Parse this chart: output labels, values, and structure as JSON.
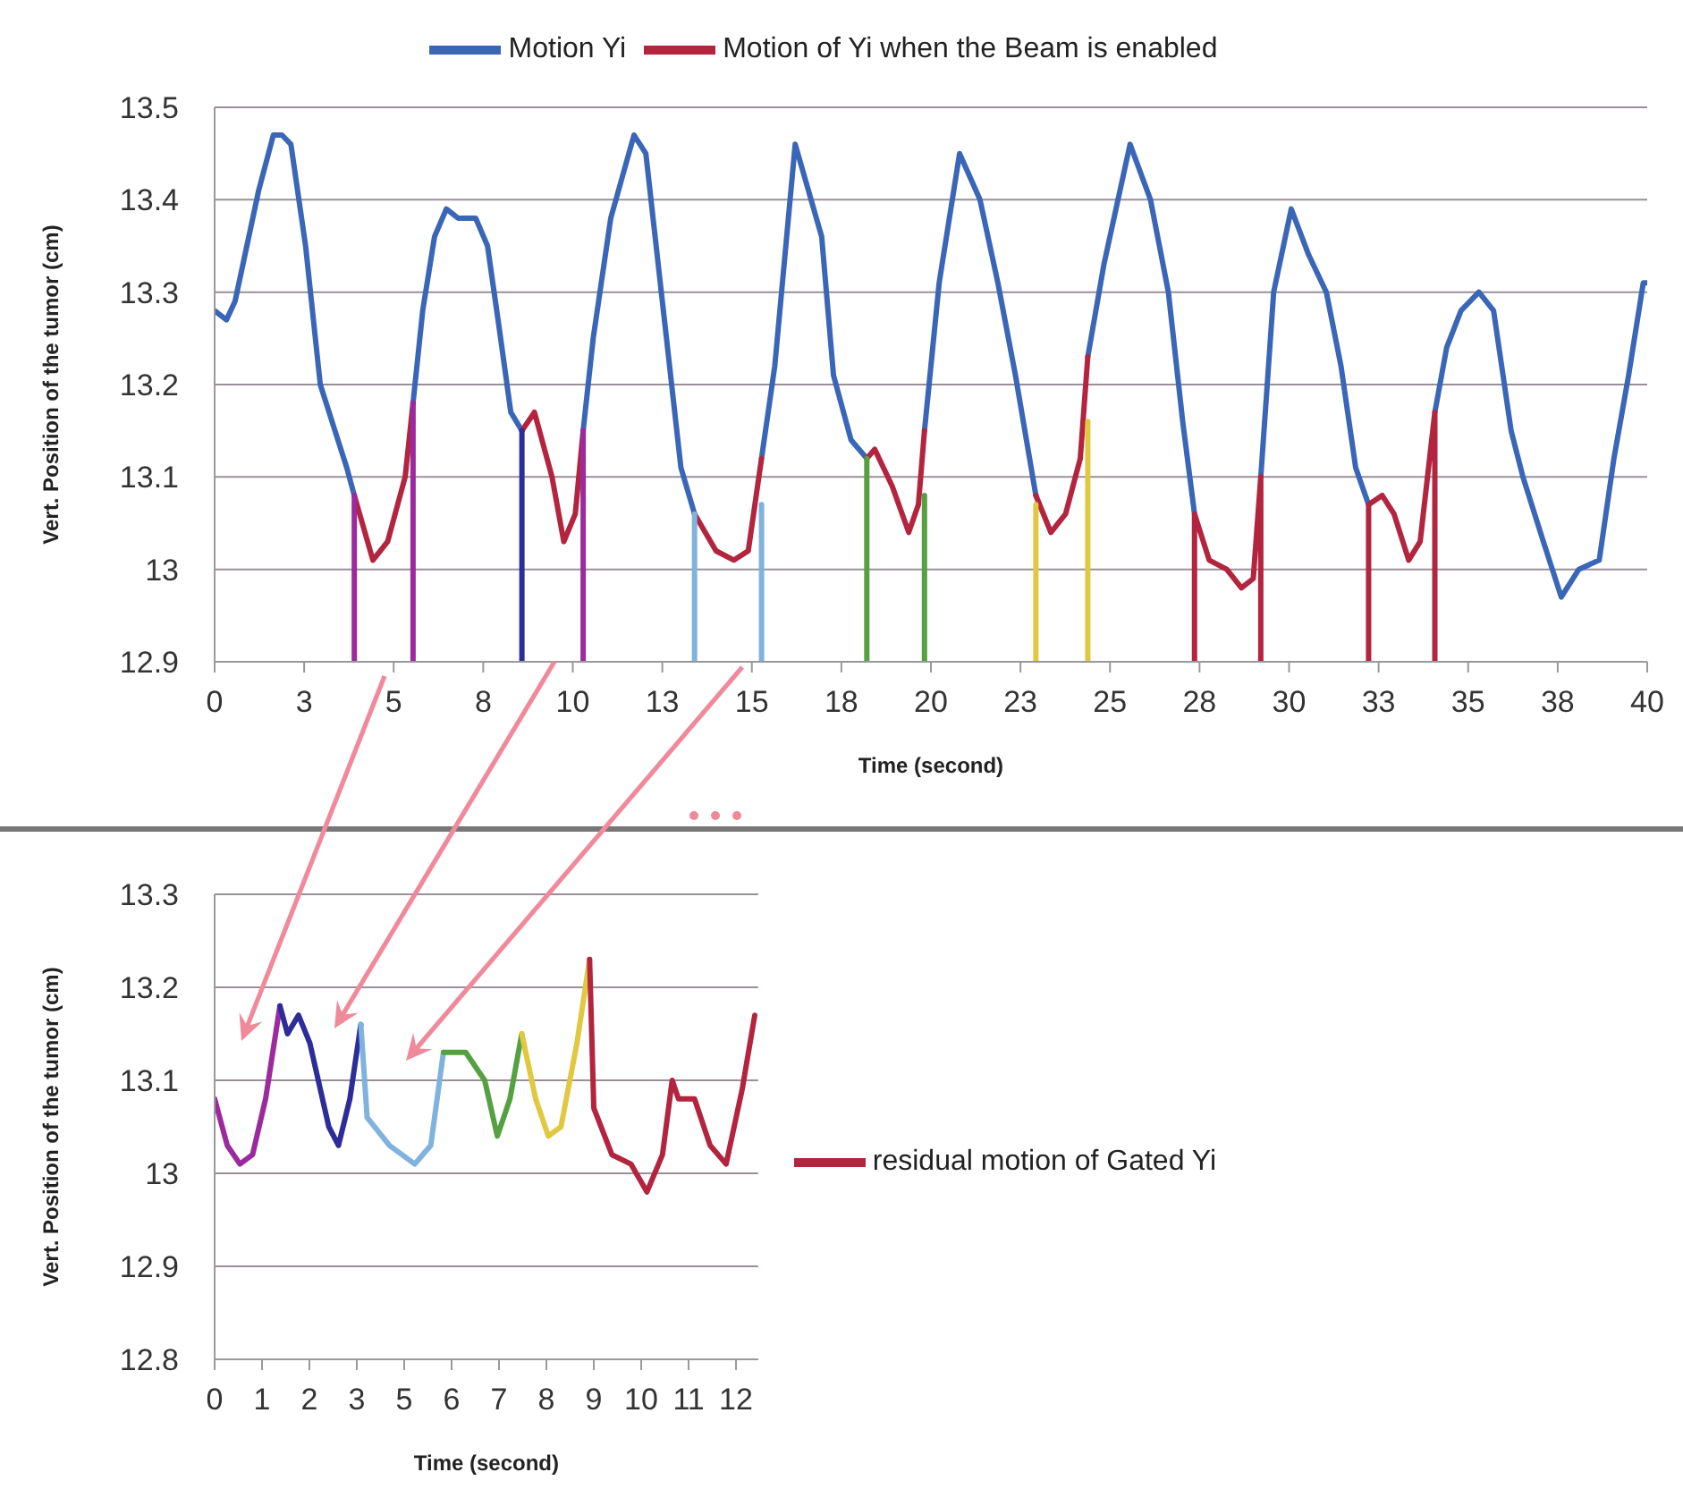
{
  "chart_data": [
    {
      "type": "line",
      "xlabel": "Time (second)",
      "ylabel": "Vert. Position of the tumor (cm)",
      "xlim": [
        0,
        40
      ],
      "ylim": [
        12.9,
        13.5
      ],
      "xticks": [
        0,
        {
          "value": 2.5,
          "label": "3"
        },
        5,
        {
          "value": 7.5,
          "label": "8"
        },
        10,
        {
          "value": 12.5,
          "label": "13"
        },
        15,
        {
          "value": 17.5,
          "label": "18"
        },
        20,
        {
          "value": 22.5,
          "label": "23"
        },
        25,
        {
          "value": 27.5,
          "label": "28"
        },
        30,
        {
          "value": 32.5,
          "label": "33"
        },
        35,
        {
          "value": 37.5,
          "label": "38"
        },
        40
      ],
      "yticks": [
        12.9,
        13,
        13.1,
        13.2,
        13.3,
        13.4,
        13.5
      ],
      "grid": "y",
      "legend": "top",
      "marker": "none",
      "line_style": "solid",
      "series": [
        {
          "name": "Motion Yi",
          "color": "#3a66b8",
          "x": [
            0,
            0.33,
            0.57,
            0.9,
            1.23,
            1.64,
            1.88,
            2.13,
            2.54,
            2.95,
            3.36,
            3.69,
            3.9,
            4.7,
            5.54,
            5.81,
            6.14,
            6.47,
            6.8,
            7.29,
            7.62,
            7.95,
            8.27,
            8.58,
            9.4,
            10.29,
            10.57,
            11.06,
            11.71,
            12.04,
            12.53,
            13.02,
            13.4,
            14.3,
            15.27,
            15.64,
            16.21,
            16.95,
            17.28,
            17.77,
            18.21,
            19,
            19.82,
            20.23,
            20.8,
            21.37,
            21.87,
            22.36,
            22.93,
            23.6,
            24.38,
            24.83,
            25.56,
            26.13,
            26.63,
            27.03,
            27.36,
            28.3,
            29.21,
            29.57,
            30.06,
            30.55,
            31.04,
            31.45,
            31.86,
            32.22,
            33.1,
            34.07,
            34.4,
            34.8,
            35.3,
            35.71,
            36.2,
            36.53,
            37.1,
            37.6,
            38.09,
            38.66,
            39.07,
            39.48,
            39.89,
            40
          ],
          "values": [
            13.28,
            13.27,
            13.29,
            13.35,
            13.41,
            13.47,
            13.47,
            13.46,
            13.35,
            13.2,
            13.15,
            13.11,
            13.08,
            null,
            13.18,
            13.28,
            13.36,
            13.39,
            13.38,
            13.38,
            13.35,
            13.26,
            13.17,
            13.15,
            null,
            13.15,
            13.25,
            13.38,
            13.47,
            13.45,
            13.28,
            13.11,
            13.06,
            null,
            13.12,
            13.22,
            13.46,
            13.36,
            13.21,
            13.14,
            13.12,
            null,
            13.15,
            13.31,
            13.45,
            13.4,
            13.31,
            13.21,
            13.08,
            null,
            13.23,
            13.33,
            13.46,
            13.4,
            13.3,
            13.16,
            13.06,
            null,
            13.1,
            13.3,
            13.39,
            13.34,
            13.3,
            13.22,
            13.11,
            13.07,
            null,
            13.17,
            13.24,
            13.28,
            13.3,
            13.28,
            13.15,
            13.1,
            13.03,
            12.97,
            13,
            13.01,
            13.12,
            13.21,
            13.31,
            13.31
          ]
        },
        {
          "name": "Motion of Yi when the Beam is enabled",
          "color": "#b3243f",
          "x": [
            3.9,
            4.42,
            4.83,
            5.32,
            5.54,
            7,
            8.58,
            8.93,
            9.42,
            9.75,
            10.07,
            10.29,
            12,
            13.4,
            14,
            14.5,
            14.9,
            15.27,
            17,
            18.21,
            18.43,
            18.92,
            19.38,
            19.65,
            19.82,
            21,
            22.93,
            23.35,
            23.76,
            24.17,
            24.38,
            26,
            27.36,
            27.36,
            27.77,
            28.26,
            28.67,
            29,
            29.21,
            29.21,
            31,
            32.22,
            32.22,
            32.6,
            32.93,
            33.34,
            33.66,
            34.07,
            34.07
          ],
          "values": [
            13.08,
            13.01,
            13.03,
            13.1,
            13.18,
            null,
            13.15,
            13.17,
            13.1,
            13.03,
            13.06,
            13.15,
            null,
            13.06,
            13.02,
            13.01,
            13.02,
            13.12,
            null,
            13.12,
            13.13,
            13.09,
            13.04,
            13.07,
            13.15,
            null,
            13.08,
            13.04,
            13.06,
            13.12,
            13.23,
            null,
            12.9,
            13.06,
            13.01,
            13,
            12.98,
            12.99,
            13.1,
            12.9,
            null,
            12.9,
            13.07,
            13.08,
            13.06,
            13.01,
            13.03,
            13.17,
            12.9
          ]
        },
        {
          "color": "#9b2a9e",
          "x": [
            3.9,
            3.9,
            4.7,
            5.54,
            5.54,
            8,
            10.29,
            10.29
          ],
          "values": [
            12.9,
            13.08,
            null,
            12.9,
            13.18,
            null,
            12.9,
            13.15
          ]
        },
        {
          "color": "#2d2d9a",
          "x": [
            8.58,
            8.58
          ],
          "values": [
            12.9,
            13.15
          ]
        },
        {
          "color": "#7fb3dd",
          "x": [
            13.4,
            13.4,
            14.3,
            15.27,
            15.27
          ],
          "values": [
            12.9,
            13.06,
            null,
            12.9,
            13.07
          ]
        },
        {
          "color": "#55a040",
          "x": [
            18.21,
            18.21,
            19,
            19.82,
            19.82
          ],
          "values": [
            12.9,
            13.12,
            null,
            12.9,
            13.08
          ]
        },
        {
          "color": "#e0c840",
          "x": [
            22.93,
            22.93,
            23.6,
            24.38,
            24.38
          ],
          "values": [
            12.9,
            13.07,
            null,
            12.9,
            13.16
          ]
        }
      ]
    },
    {
      "type": "line",
      "xlabel": "Time (second)",
      "ylabel": "Vert. Position of the tumor (cm)",
      "xlim": [
        0,
        12.9
      ],
      "ylim": [
        12.8,
        13.3
      ],
      "xticks": [
        0,
        {
          "value": 1.125,
          "label": "1"
        },
        {
          "value": 2.25,
          "label": "2"
        },
        {
          "value": 3.375,
          "label": "3"
        },
        {
          "value": 4.5,
          "label": "5"
        },
        {
          "value": 5.625,
          "label": "6"
        },
        {
          "value": 6.75,
          "label": "7"
        },
        {
          "value": 7.875,
          "label": "8"
        },
        9,
        {
          "value": 10.125,
          "label": "10"
        },
        {
          "value": 11.25,
          "label": "11"
        },
        {
          "value": 12.375,
          "label": "12"
        }
      ],
      "yticks": [
        12.8,
        12.9,
        13,
        13.1,
        13.2,
        13.3
      ],
      "grid": "y",
      "legend": "right",
      "marker": "none",
      "line_style": "solid",
      "series": [
        {
          "color": "#9b2a9e",
          "x": [
            0,
            0.3,
            0.6,
            0.9,
            1.21,
            1.55
          ],
          "values": [
            13.08,
            13.03,
            13.01,
            13.02,
            13.08,
            13.18
          ]
        },
        {
          "color": "#2d2d9a",
          "x": [
            1.55,
            1.73,
            1.99,
            2.26,
            2.71,
            2.94,
            3.21,
            3.47
          ],
          "values": [
            13.18,
            13.15,
            13.17,
            13.14,
            13.05,
            13.03,
            13.08,
            13.16
          ]
        },
        {
          "color": "#7fb3dd",
          "x": [
            3.47,
            3.62,
            4.15,
            4.75,
            5.13,
            5.43
          ],
          "values": [
            13.16,
            13.06,
            13.03,
            13.01,
            13.03,
            13.13
          ]
        },
        {
          "color": "#55a040",
          "x": [
            5.43,
            5.96,
            6.41,
            6.71,
            7.01,
            7.29
          ],
          "values": [
            13.13,
            13.13,
            13.1,
            13.04,
            13.08,
            13.15
          ]
        },
        {
          "color": "#e0c840",
          "x": [
            7.29,
            7.62,
            7.92,
            8.22,
            8.6,
            8.9
          ],
          "values": [
            13.15,
            13.08,
            13.04,
            13.05,
            13.14,
            13.23
          ]
        },
        {
          "name": "residual motion of Gated Yi",
          "color": "#b3243f",
          "x": [
            8.9,
            9,
            9.43,
            9.88,
            10.26,
            10.63,
            10.86,
            11.01,
            11.39,
            11.76,
            12.14,
            12.52,
            12.82
          ],
          "values": [
            13.23,
            13.07,
            13.02,
            13.01,
            12.98,
            13.02,
            13.1,
            13.08,
            13.08,
            13.03,
            13.01,
            13.09,
            13.17
          ]
        }
      ]
    }
  ]
}
